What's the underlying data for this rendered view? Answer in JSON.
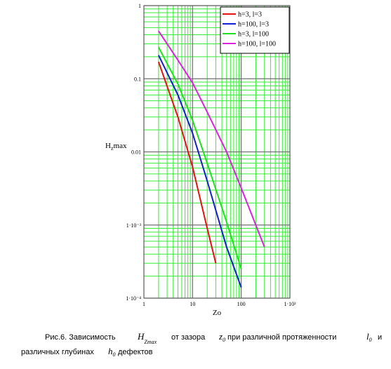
{
  "chart_data": {
    "type": "line",
    "log_x": true,
    "log_y": true,
    "grid": true,
    "minor_grid": true,
    "grid_color": "#707070",
    "minor_grid_color": "#33ee33",
    "legend": "upper-right",
    "xlabel": "Zo",
    "ylabel": {
      "main": "H",
      "sub": "z",
      "rest": "max"
    },
    "xlim": [
      1,
      1000
    ],
    "ylim": [
      0.0001,
      1
    ],
    "xticks": [
      1,
      10,
      100,
      {
        "value": 1000,
        "label": "1·10³"
      }
    ],
    "yticks": [
      {
        "value": 0.0001,
        "label": "1·10⁻⁴"
      },
      {
        "value": 0.001,
        "label": "1·10⁻³"
      },
      0.01,
      0.1,
      1
    ],
    "series": [
      {
        "name": "h=3, l=3",
        "color": "#e81010",
        "x": [
          2,
          5,
          10,
          20,
          30
        ],
        "values": [
          0.17,
          0.03,
          0.0062,
          0.0009,
          0.0003
        ]
      },
      {
        "name": "h=100, l=3",
        "color": "#1020d0",
        "x": [
          2,
          5,
          10,
          20,
          50,
          100
        ],
        "values": [
          0.21,
          0.06,
          0.018,
          0.004,
          0.0005,
          0.00014
        ]
      },
      {
        "name": "h=3, l=100",
        "color": "#20e020",
        "x": [
          2,
          5,
          10,
          20,
          50,
          100
        ],
        "values": [
          0.27,
          0.085,
          0.027,
          0.007,
          0.0011,
          0.00025
        ]
      },
      {
        "name": "h=100, l=100",
        "color": "#e020e0",
        "x": [
          2,
          5,
          10,
          20,
          50,
          100,
          300
        ],
        "values": [
          0.45,
          0.18,
          0.088,
          0.035,
          0.01,
          0.0032,
          0.0005
        ]
      }
    ]
  },
  "caption": {
    "t1": "Рис.6.  Зависимость",
    "s1": "H",
    "b1": "Zmax",
    "t2": "от зазора",
    "s2": "z",
    "b2": "0",
    "t3": "при различной протяженности",
    "s3": "l",
    "b3": "0",
    "t4": "и",
    "t5": "различных глубинах",
    "s5": "h",
    "b5": "0",
    "t6": "дефектов"
  }
}
